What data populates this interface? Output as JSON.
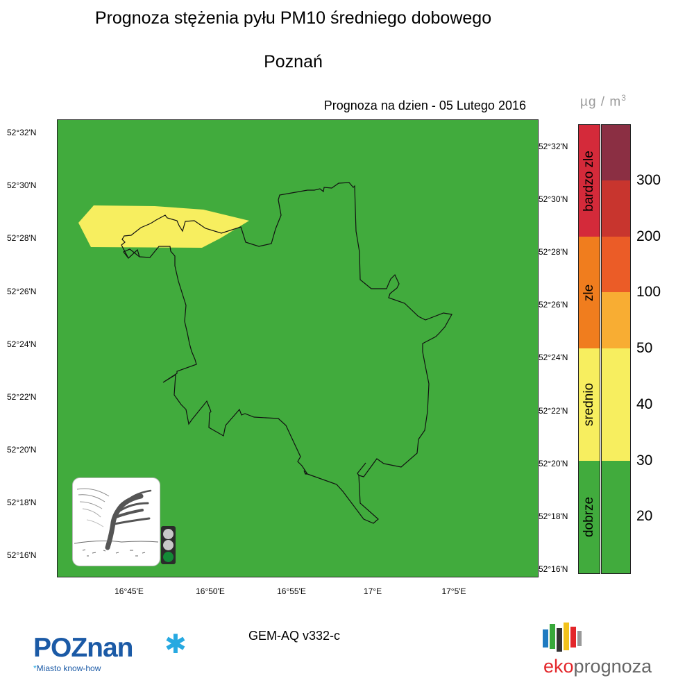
{
  "header": {
    "title": "Prognoza stężenia pyłu PM10 średniego dobowego",
    "city": "Poznań",
    "forecast_date": "Prognoza na dzien -  05 Lutego 2016"
  },
  "unit": {
    "base": "µg / m",
    "exp": "3"
  },
  "map": {
    "background_color": "#41ab3d",
    "plume_color": "#f7ee5f",
    "lat_labels_left": [
      "52°32'N",
      "52°30'N",
      "52°28'N",
      "52°26'N",
      "52°24'N",
      "52°22'N",
      "52°20'N",
      "52°18'N",
      "52°16'N"
    ],
    "lat_labels_right": [
      "52°32'N",
      "52°30'N",
      "52°28'N",
      "52°26'N",
      "52°24'N",
      "52°22'N",
      "52°20'N",
      "52°18'N",
      "52°16'N"
    ],
    "lon_labels": [
      "16°45'E",
      "16°50'E",
      "16°55'E",
      "17°E",
      "17°5'E"
    ]
  },
  "legend": {
    "categories": [
      {
        "label": "bardzo zle",
        "color": "#d42a3a"
      },
      {
        "label": "zle",
        "color": "#f07d1e"
      },
      {
        "label": "srednio",
        "color": "#f7ee5f"
      },
      {
        "label": "dobrze",
        "color": "#41ab3d"
      }
    ],
    "scale_colors": [
      "#8b2f43",
      "#c8352e",
      "#eb5c27",
      "#f8ad33",
      "#f7ee5f",
      "#f7ee5f",
      "#41ab3d",
      "#41ab3d"
    ],
    "tick_values": [
      "300",
      "200",
      "100",
      "50",
      "40",
      "30",
      "20"
    ]
  },
  "footer": {
    "model": "GEM-AQ v332-c",
    "poznan_logo_text": "POZnan",
    "poznan_tagline": "Miasto know-how",
    "eko_prefix": "eko",
    "eko_suffix": "prognoza"
  },
  "traffic_light": {
    "lamps": [
      "#c8c8c8",
      "#c8c8c8",
      "#138a36"
    ]
  }
}
